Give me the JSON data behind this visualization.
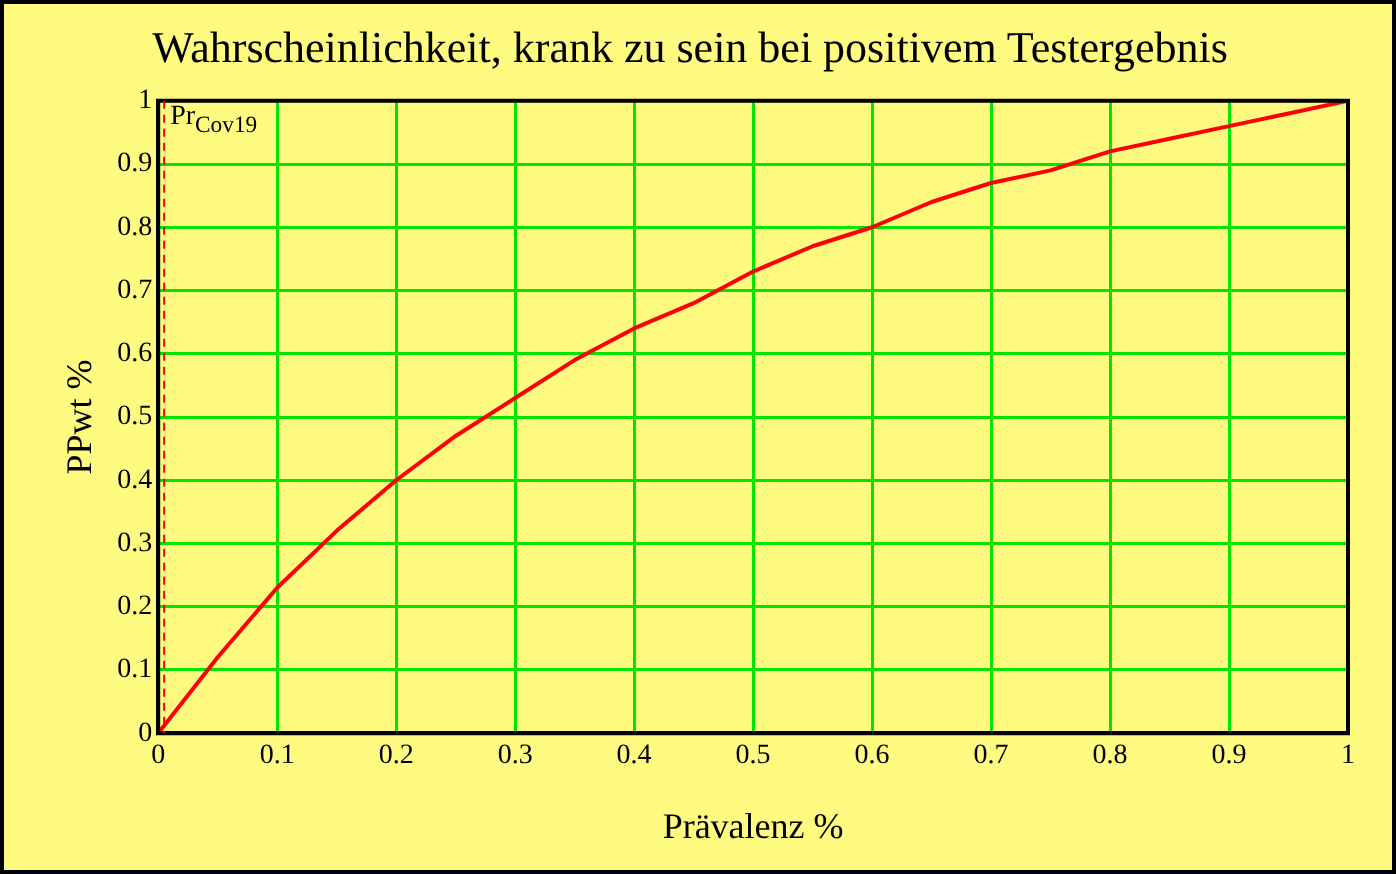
{
  "chart_data": {
    "type": "line",
    "title": "Wahrscheinlichkeit, krank zu sein bei positivem Testergebnis",
    "xlabel": "Prävalenz %",
    "ylabel": "PPwt %",
    "x": [
      0,
      0.05,
      0.1,
      0.15,
      0.2,
      0.25,
      0.3,
      0.35,
      0.4,
      0.45,
      0.5,
      0.55,
      0.6,
      0.65,
      0.7,
      0.75,
      0.8,
      0.85,
      0.9,
      0.95,
      1
    ],
    "series": [
      {
        "color": "#ff0000",
        "values": [
          0,
          0.12,
          0.23,
          0.32,
          0.4,
          0.47,
          0.53,
          0.59,
          0.64,
          0.68,
          0.73,
          0.77,
          0.8,
          0.84,
          0.87,
          0.89,
          0.92,
          0.94,
          0.96,
          0.98,
          1
        ]
      }
    ],
    "xlim": [
      0,
      1
    ],
    "ylim": [
      0,
      1
    ],
    "xticks": [
      0,
      0.1,
      0.2,
      0.3,
      0.4,
      0.5,
      0.6,
      0.7,
      0.8,
      0.9,
      1
    ],
    "yticks": [
      0,
      0.1,
      0.2,
      0.3,
      0.4,
      0.5,
      0.6,
      0.7,
      0.8,
      0.9,
      1
    ],
    "ref_lines": [
      {
        "axis": "x",
        "value": 0.005,
        "label": "Pr$_{Cov19}$",
        "color": "#ff0000",
        "line_style": "dashed"
      }
    ],
    "grid": true,
    "legend": false,
    "marker": "none",
    "line_style": "solid"
  }
}
